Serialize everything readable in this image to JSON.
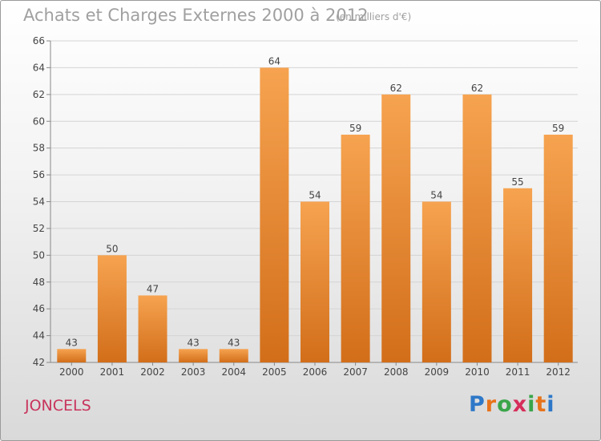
{
  "chart_data": {
    "type": "bar",
    "title": "Achats et Charges Externes 2000 à 2012",
    "subtitle": "(en milliers d'€)",
    "categories": [
      "2000",
      "2001",
      "2002",
      "2003",
      "2004",
      "2005",
      "2006",
      "2007",
      "2008",
      "2009",
      "2010",
      "2011",
      "2012"
    ],
    "values": [
      43,
      50,
      47,
      43,
      43,
      64,
      54,
      59,
      62,
      54,
      62,
      55,
      59
    ],
    "ylim": [
      42,
      66
    ],
    "yticks": [
      42,
      44,
      46,
      48,
      50,
      52,
      54,
      56,
      58,
      60,
      62,
      64,
      66
    ],
    "grid": true,
    "bar_color_top": "#f6a350",
    "bar_color_bottom": "#d26e1a"
  },
  "commune": "JONCELS",
  "logo": {
    "text": "Proxiti",
    "letter_colors": [
      "#2e78c8",
      "#e8731a",
      "#3aa54a",
      "#d62e5a",
      "#3aa54a",
      "#e8731a",
      "#2e78c8"
    ]
  }
}
